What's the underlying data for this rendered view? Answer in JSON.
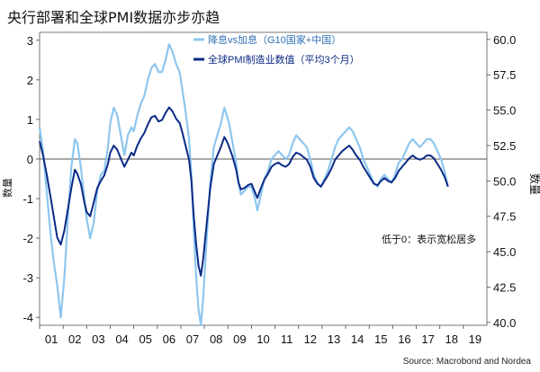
{
  "chart_data": {
    "type": "line",
    "title": "央行部署和全球PMI数据亦步亦趋",
    "source": "Source: Macrobond and Nordea",
    "left_axis": {
      "label": "数量",
      "ylim": [
        -4.2,
        3.2
      ],
      "ticks": [
        "3",
        "2",
        "1",
        "0",
        "-1",
        "-2",
        "-3",
        "-4"
      ]
    },
    "right_axis": {
      "label": "数量",
      "ylim": [
        39.8,
        60.5
      ],
      "ticks": [
        "60.0",
        "57.5",
        "55.0",
        "52.5",
        "50.0",
        "47.5",
        "45.0",
        "42.5",
        "40.0"
      ]
    },
    "x_axis": {
      "categories": [
        "01",
        "02",
        "03",
        "04",
        "05",
        "06",
        "07",
        "08",
        "09",
        "10",
        "11",
        "12",
        "13",
        "14",
        "15",
        "16",
        "17",
        "18",
        "19"
      ]
    },
    "annotation": "低于0：表示宽松居多",
    "series": [
      {
        "name": "降息vs加息（G10国家+中国）",
        "axis": "left",
        "color": "#8ec6ef",
        "points": [
          [
            2000.0,
            0.8
          ],
          [
            2000.15,
            0.2
          ],
          [
            2000.3,
            -0.8
          ],
          [
            2000.45,
            -1.8
          ],
          [
            2000.6,
            -2.6
          ],
          [
            2000.75,
            -3.2
          ],
          [
            2000.9,
            -4.0
          ],
          [
            2001.05,
            -3.0
          ],
          [
            2001.2,
            -1.5
          ],
          [
            2001.35,
            -0.2
          ],
          [
            2001.5,
            0.5
          ],
          [
            2001.6,
            0.4
          ],
          [
            2001.75,
            -0.2
          ],
          [
            2001.9,
            -1.0
          ],
          [
            2002.0,
            -1.5
          ],
          [
            2002.15,
            -2.0
          ],
          [
            2002.3,
            -1.6
          ],
          [
            2002.45,
            -0.8
          ],
          [
            2002.6,
            -0.4
          ],
          [
            2002.75,
            -0.3
          ],
          [
            2002.9,
            0.3
          ],
          [
            2003.0,
            0.9
          ],
          [
            2003.15,
            1.3
          ],
          [
            2003.3,
            1.1
          ],
          [
            2003.45,
            0.6
          ],
          [
            2003.6,
            0.1
          ],
          [
            2003.75,
            0.6
          ],
          [
            2003.9,
            0.8
          ],
          [
            2004.0,
            0.7
          ],
          [
            2004.15,
            1.1
          ],
          [
            2004.3,
            1.4
          ],
          [
            2004.45,
            1.6
          ],
          [
            2004.6,
            2.0
          ],
          [
            2004.75,
            2.3
          ],
          [
            2004.9,
            2.4
          ],
          [
            2005.05,
            2.2
          ],
          [
            2005.2,
            2.2
          ],
          [
            2005.35,
            2.5
          ],
          [
            2005.5,
            2.9
          ],
          [
            2005.65,
            2.7
          ],
          [
            2005.8,
            2.4
          ],
          [
            2005.95,
            2.2
          ],
          [
            2006.05,
            1.8
          ],
          [
            2006.2,
            1.2
          ],
          [
            2006.35,
            0.5
          ],
          [
            2006.45,
            -0.4
          ],
          [
            2006.55,
            -1.8
          ],
          [
            2006.65,
            -3.0
          ],
          [
            2006.75,
            -3.8
          ],
          [
            2006.85,
            -4.2
          ],
          [
            2006.95,
            -3.5
          ],
          [
            2007.1,
            -2.0
          ],
          [
            2007.25,
            -0.6
          ],
          [
            2007.4,
            0.3
          ],
          [
            2007.55,
            0.6
          ],
          [
            2007.7,
            0.9
          ],
          [
            2007.85,
            1.3
          ],
          [
            2007.95,
            1.1
          ],
          [
            2008.05,
            0.9
          ],
          [
            2008.2,
            0.4
          ],
          [
            2008.35,
            -0.1
          ],
          [
            2008.45,
            -0.6
          ],
          [
            2008.55,
            -0.9
          ],
          [
            2008.7,
            -0.8
          ],
          [
            2008.85,
            -0.7
          ],
          [
            2009.0,
            -0.7
          ],
          [
            2009.15,
            -1.0
          ],
          [
            2009.25,
            -1.3
          ],
          [
            2009.4,
            -0.9
          ],
          [
            2009.55,
            -0.5
          ],
          [
            2009.7,
            -0.3
          ],
          [
            2009.85,
            0.0
          ],
          [
            2010.0,
            0.1
          ],
          [
            2010.15,
            0.2
          ],
          [
            2010.3,
            0.1
          ],
          [
            2010.45,
            0.0
          ],
          [
            2010.6,
            0.1
          ],
          [
            2010.75,
            0.4
          ],
          [
            2010.9,
            0.6
          ],
          [
            2011.05,
            0.5
          ],
          [
            2011.2,
            0.4
          ],
          [
            2011.35,
            0.3
          ],
          [
            2011.5,
            0.0
          ],
          [
            2011.65,
            -0.4
          ],
          [
            2011.8,
            -0.6
          ],
          [
            2011.95,
            -0.7
          ],
          [
            2012.1,
            -0.5
          ],
          [
            2012.25,
            -0.3
          ],
          [
            2012.4,
            0.0
          ],
          [
            2012.55,
            0.3
          ],
          [
            2012.7,
            0.5
          ],
          [
            2012.85,
            0.6
          ],
          [
            2013.0,
            0.7
          ],
          [
            2013.15,
            0.8
          ],
          [
            2013.3,
            0.7
          ],
          [
            2013.45,
            0.5
          ],
          [
            2013.6,
            0.3
          ],
          [
            2013.75,
            0.0
          ],
          [
            2013.9,
            -0.2
          ],
          [
            2014.05,
            -0.4
          ],
          [
            2014.2,
            -0.6
          ],
          [
            2014.35,
            -0.7
          ],
          [
            2014.5,
            -0.5
          ],
          [
            2014.65,
            -0.4
          ],
          [
            2014.8,
            -0.5
          ],
          [
            2014.95,
            -0.6
          ],
          [
            2015.1,
            -0.4
          ],
          [
            2015.25,
            -0.1
          ],
          [
            2015.4,
            0.0
          ],
          [
            2015.55,
            0.2
          ],
          [
            2015.7,
            0.4
          ],
          [
            2015.85,
            0.5
          ],
          [
            2016.0,
            0.4
          ],
          [
            2016.15,
            0.3
          ],
          [
            2016.3,
            0.4
          ],
          [
            2016.45,
            0.5
          ],
          [
            2016.6,
            0.5
          ],
          [
            2016.75,
            0.4
          ],
          [
            2016.9,
            0.2
          ],
          [
            2017.05,
            0.0
          ],
          [
            2017.2,
            -0.3
          ],
          [
            2017.35,
            -0.7
          ]
        ]
      },
      {
        "name": "全球PMI制造业数值（平均3个月）",
        "axis": "right",
        "color": "#0b2a85",
        "points": [
          [
            2000.0,
            52.8
          ],
          [
            2000.15,
            51.8
          ],
          [
            2000.3,
            50.5
          ],
          [
            2000.45,
            49.0
          ],
          [
            2000.6,
            47.5
          ],
          [
            2000.75,
            46.0
          ],
          [
            2000.9,
            45.5
          ],
          [
            2001.05,
            46.5
          ],
          [
            2001.2,
            48.0
          ],
          [
            2001.35,
            49.5
          ],
          [
            2001.5,
            50.8
          ],
          [
            2001.6,
            50.5
          ],
          [
            2001.75,
            49.8
          ],
          [
            2001.9,
            48.5
          ],
          [
            2002.0,
            47.8
          ],
          [
            2002.15,
            47.5
          ],
          [
            2002.3,
            48.5
          ],
          [
            2002.45,
            49.5
          ],
          [
            2002.6,
            50.0
          ],
          [
            2002.75,
            50.4
          ],
          [
            2002.9,
            51.2
          ],
          [
            2003.0,
            52.0
          ],
          [
            2003.15,
            52.5
          ],
          [
            2003.3,
            52.2
          ],
          [
            2003.45,
            51.6
          ],
          [
            2003.6,
            51.0
          ],
          [
            2003.75,
            51.5
          ],
          [
            2003.9,
            52.0
          ],
          [
            2004.0,
            51.8
          ],
          [
            2004.15,
            52.5
          ],
          [
            2004.3,
            53.0
          ],
          [
            2004.45,
            53.4
          ],
          [
            2004.6,
            54.0
          ],
          [
            2004.75,
            54.5
          ],
          [
            2004.9,
            54.6
          ],
          [
            2005.05,
            54.2
          ],
          [
            2005.2,
            54.3
          ],
          [
            2005.35,
            54.8
          ],
          [
            2005.5,
            55.2
          ],
          [
            2005.65,
            54.9
          ],
          [
            2005.8,
            54.4
          ],
          [
            2005.95,
            54.1
          ],
          [
            2006.05,
            53.5
          ],
          [
            2006.2,
            52.5
          ],
          [
            2006.35,
            51.5
          ],
          [
            2006.45,
            50.0
          ],
          [
            2006.55,
            47.5
          ],
          [
            2006.65,
            45.5
          ],
          [
            2006.75,
            44.0
          ],
          [
            2006.85,
            43.3
          ],
          [
            2006.95,
            44.5
          ],
          [
            2007.1,
            47.0
          ],
          [
            2007.25,
            49.5
          ],
          [
            2007.4,
            51.2
          ],
          [
            2007.55,
            51.8
          ],
          [
            2007.7,
            52.4
          ],
          [
            2007.85,
            53.1
          ],
          [
            2007.95,
            52.8
          ],
          [
            2008.05,
            52.4
          ],
          [
            2008.2,
            51.7
          ],
          [
            2008.35,
            50.8
          ],
          [
            2008.45,
            49.9
          ],
          [
            2008.55,
            49.4
          ],
          [
            2008.7,
            49.5
          ],
          [
            2008.85,
            49.7
          ],
          [
            2009.0,
            49.8
          ],
          [
            2009.15,
            49.2
          ],
          [
            2009.25,
            48.8
          ],
          [
            2009.4,
            49.5
          ],
          [
            2009.55,
            50.1
          ],
          [
            2009.7,
            50.5
          ],
          [
            2009.85,
            51.0
          ],
          [
            2010.0,
            51.2
          ],
          [
            2010.15,
            51.3
          ],
          [
            2010.3,
            51.1
          ],
          [
            2010.45,
            51.0
          ],
          [
            2010.6,
            51.2
          ],
          [
            2010.75,
            51.7
          ],
          [
            2010.9,
            52.0
          ],
          [
            2011.05,
            51.9
          ],
          [
            2011.2,
            51.7
          ],
          [
            2011.35,
            51.5
          ],
          [
            2011.5,
            51.0
          ],
          [
            2011.65,
            50.2
          ],
          [
            2011.8,
            49.8
          ],
          [
            2011.95,
            49.6
          ],
          [
            2012.1,
            50.0
          ],
          [
            2012.25,
            50.4
          ],
          [
            2012.4,
            50.9
          ],
          [
            2012.55,
            51.5
          ],
          [
            2012.7,
            51.8
          ],
          [
            2012.85,
            52.1
          ],
          [
            2013.0,
            52.3
          ],
          [
            2013.15,
            52.5
          ],
          [
            2013.3,
            52.2
          ],
          [
            2013.45,
            51.8
          ],
          [
            2013.6,
            51.5
          ],
          [
            2013.75,
            51.0
          ],
          [
            2013.9,
            50.6
          ],
          [
            2014.05,
            50.2
          ],
          [
            2014.2,
            49.8
          ],
          [
            2014.35,
            49.7
          ],
          [
            2014.5,
            50.0
          ],
          [
            2014.65,
            50.2
          ],
          [
            2014.8,
            50.0
          ],
          [
            2014.95,
            49.9
          ],
          [
            2015.1,
            50.2
          ],
          [
            2015.25,
            50.7
          ],
          [
            2015.4,
            51.0
          ],
          [
            2015.55,
            51.3
          ],
          [
            2015.7,
            51.6
          ],
          [
            2015.85,
            51.8
          ],
          [
            2016.0,
            51.6
          ],
          [
            2016.15,
            51.5
          ],
          [
            2016.3,
            51.6
          ],
          [
            2016.45,
            51.8
          ],
          [
            2016.6,
            51.8
          ],
          [
            2016.75,
            51.6
          ],
          [
            2016.9,
            51.2
          ],
          [
            2017.05,
            50.8
          ],
          [
            2017.2,
            50.3
          ],
          [
            2017.35,
            49.6
          ]
        ]
      }
    ]
  }
}
